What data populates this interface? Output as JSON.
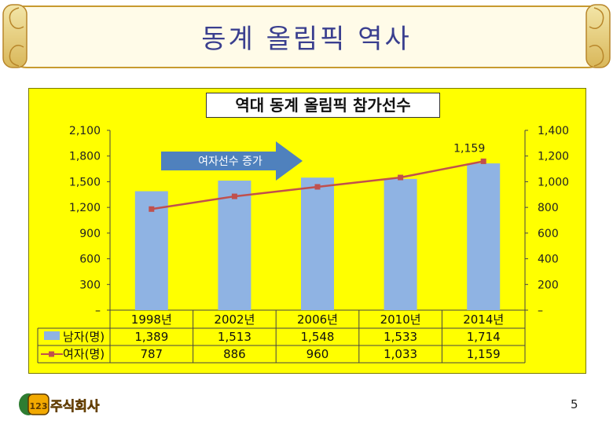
{
  "slide": {
    "title": "동계 올림픽 역사",
    "page_number": "5",
    "logo_text": "123주식회사"
  },
  "chart_data": {
    "type": "bar",
    "title": "역대 동계 올림픽 참가선수",
    "categories": [
      "1998년",
      "2002년",
      "2006년",
      "2010년",
      "2014년"
    ],
    "series": [
      {
        "name": "남자(명)",
        "type": "bar",
        "axis": "left",
        "color": "#8fb3e3",
        "values": [
          1389,
          1513,
          1548,
          1533,
          1714
        ]
      },
      {
        "name": "여자(명)",
        "type": "line",
        "axis": "right",
        "color": "#c0504d",
        "values": [
          787,
          886,
          960,
          1033,
          1159
        ]
      }
    ],
    "display_values": {
      "남자(명)": [
        "1,389",
        "1,513",
        "1,548",
        "1,533",
        "1,714"
      ],
      "여자(명)": [
        "787",
        "886",
        "960",
        "1,033",
        "1,159"
      ]
    },
    "y_left": {
      "range": [
        0,
        2100
      ],
      "tick_labels": [
        "–",
        "300",
        "600",
        "900",
        "1,200",
        "1,500",
        "1,800",
        "2,100"
      ]
    },
    "y_right": {
      "range": [
        0,
        1400
      ],
      "tick_labels": [
        "–",
        "200",
        "400",
        "600",
        "800",
        "1,000",
        "1,200",
        "1,400"
      ]
    },
    "data_labels": [
      {
        "series": "여자(명)",
        "category": "2014년",
        "text": "1,159"
      }
    ],
    "annotation": "여자선수 증가",
    "legend": "data-table",
    "grid": false
  }
}
